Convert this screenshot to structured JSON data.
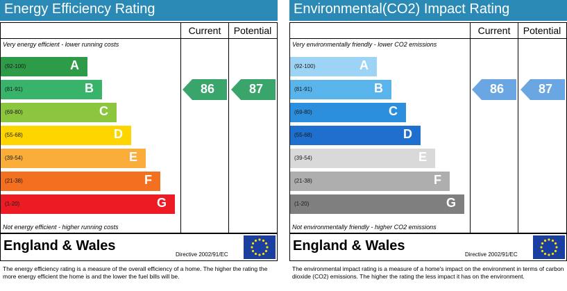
{
  "chart_data": [
    {
      "type": "bar",
      "title": "Energy Efficiency Rating",
      "columns": [
        "Current",
        "Potential"
      ],
      "top_note": "Very energy efficient - lower running costs",
      "bottom_note": "Not energy efficient - higher running costs",
      "bands": [
        {
          "range": "(92-100)",
          "letter": "A",
          "color": "#2e9b48"
        },
        {
          "range": "(81-91)",
          "letter": "B",
          "color": "#37b36a"
        },
        {
          "range": "(69-80)",
          "letter": "C",
          "color": "#8cc63f"
        },
        {
          "range": "(55-68)",
          "letter": "D",
          "color": "#ffd500"
        },
        {
          "range": "(39-54)",
          "letter": "E",
          "color": "#fbad3c"
        },
        {
          "range": "(21-38)",
          "letter": "F",
          "color": "#f37021"
        },
        {
          "range": "(1-20)",
          "letter": "G",
          "color": "#ed1c24"
        }
      ],
      "current": {
        "value": "86",
        "band": "B",
        "color": "#3aa56b"
      },
      "potential": {
        "value": "87",
        "band": "B",
        "color": "#3aa56b"
      },
      "region": "England & Wales",
      "directive": "Directive 2002/91/EC",
      "description": "The energy efficiency rating is a measure of the overall efficiency of a home. The higher the rating the more energy efficient the home is and the lower the fuel bills will be."
    },
    {
      "type": "bar",
      "title": "Environmental(CO2) Impact Rating",
      "columns": [
        "Current",
        "Potential"
      ],
      "top_note": "Very environmentally friendly - lower CO2 emissions",
      "bottom_note": "Not environmentally friendly - higher CO2 emissions",
      "bands": [
        {
          "range": "(92-100)",
          "letter": "A",
          "color": "#9dd3f5"
        },
        {
          "range": "(81-91)",
          "letter": "B",
          "color": "#58b4ea"
        },
        {
          "range": "(69-80)",
          "letter": "C",
          "color": "#2b8fde"
        },
        {
          "range": "(55-68)",
          "letter": "D",
          "color": "#1f6fce"
        },
        {
          "range": "(39-54)",
          "letter": "E",
          "color": "#d9d9d9"
        },
        {
          "range": "(21-38)",
          "letter": "F",
          "color": "#aeaeae"
        },
        {
          "range": "(1-20)",
          "letter": "G",
          "color": "#7f7f7f"
        }
      ],
      "current": {
        "value": "86",
        "band": "B",
        "color": "#6aa7e2"
      },
      "potential": {
        "value": "87",
        "band": "B",
        "color": "#6aa7e2"
      },
      "region": "England & Wales",
      "directive": "Directive 2002/91/EC",
      "description": "The environmental impact rating is a measure of a home's impact on the environment in terms of carbon dioxide (CO2) emissions. The higher the rating the less impact it has on the environment."
    }
  ]
}
